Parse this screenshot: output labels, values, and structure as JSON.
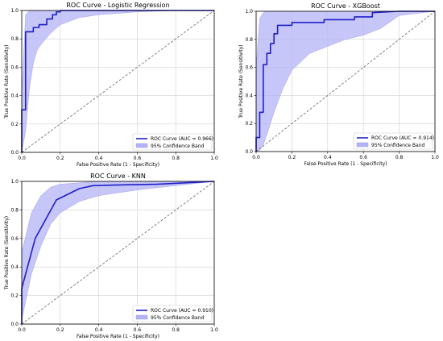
{
  "colors": {
    "roc": "#1f1fc8",
    "band": "#b3b3f5",
    "diag": "#666666",
    "grid": "#d0d0d0"
  },
  "chart_data": [
    {
      "type": "line",
      "title": "ROC Curve - Logistic Regression",
      "xlabel": "False Positive Rate (1 - Specificity)",
      "ylabel": "True Positive Rate (Sensitivity)",
      "xlim": [
        0,
        1
      ],
      "ylim": [
        0,
        1
      ],
      "xticks": [
        "0.0",
        "0.2",
        "0.4",
        "0.6",
        "0.8",
        "1.0"
      ],
      "yticks": [
        "0.0",
        "0.2",
        "0.4",
        "0.6",
        "0.8",
        "1.0"
      ],
      "grid": true,
      "legend": "bottom-right",
      "roc_label": "ROC Curve (AUC = 0.966)",
      "band_label": "95% Confidence Band",
      "roc": {
        "x": [
          0,
          0,
          0.02,
          0.02,
          0.06,
          0.06,
          0.09,
          0.09,
          0.13,
          0.13,
          0.16,
          0.16,
          0.18,
          0.18,
          0.2,
          0.2,
          0.3,
          1.0
        ],
        "y": [
          0,
          0.3,
          0.3,
          0.85,
          0.85,
          0.88,
          0.88,
          0.9,
          0.9,
          0.94,
          0.94,
          0.97,
          0.97,
          0.99,
          0.99,
          1.0,
          1.0,
          1.0
        ]
      },
      "band": {
        "x": [
          0,
          0.02,
          0.04,
          0.06,
          0.08,
          0.1,
          0.15,
          0.2,
          0.3,
          0.4,
          0.6,
          0.8,
          1.0
        ],
        "upper": [
          0.4,
          0.97,
          1,
          1,
          1,
          1,
          1,
          1,
          1,
          1,
          1,
          1,
          1
        ],
        "lower": [
          0,
          0.15,
          0.45,
          0.63,
          0.72,
          0.76,
          0.84,
          0.9,
          0.95,
          0.97,
          0.99,
          1,
          1
        ]
      }
    },
    {
      "type": "line",
      "title": "ROC Curve - XGBoost",
      "xlabel": "False Positive Rate (1 - Specificity)",
      "ylabel": "True Positive Rate (Sensitivity)",
      "xlim": [
        0,
        1
      ],
      "ylim": [
        0,
        1
      ],
      "xticks": [
        "0.0",
        "0.2",
        "0.4",
        "0.6",
        "0.8",
        "1.0"
      ],
      "yticks": [
        "0.0",
        "0.2",
        "0.4",
        "0.6",
        "0.8",
        "1.0"
      ],
      "grid": true,
      "legend": "bottom-right",
      "roc_label": "ROC Curve (AUC = 0.914)",
      "band_label": "95% Confidence Band",
      "roc": {
        "x": [
          0,
          0,
          0.02,
          0.02,
          0.04,
          0.04,
          0.06,
          0.06,
          0.08,
          0.08,
          0.1,
          0.1,
          0.12,
          0.12,
          0.2,
          0.2,
          0.38,
          0.38,
          0.55,
          0.55,
          0.65,
          0.65,
          0.8,
          1.0
        ],
        "y": [
          0,
          0.1,
          0.1,
          0.28,
          0.28,
          0.62,
          0.62,
          0.7,
          0.7,
          0.77,
          0.77,
          0.84,
          0.84,
          0.9,
          0.9,
          0.92,
          0.92,
          0.94,
          0.94,
          0.96,
          0.96,
          0.99,
          1.0,
          1.0
        ]
      },
      "band": {
        "x": [
          0,
          0.02,
          0.04,
          0.06,
          0.08,
          0.1,
          0.15,
          0.2,
          0.3,
          0.4,
          0.5,
          0.6,
          0.7,
          0.8,
          1.0
        ],
        "upper": [
          0.6,
          0.95,
          0.99,
          1,
          1,
          1,
          1,
          1,
          1,
          1,
          1,
          1,
          1,
          1,
          1
        ],
        "lower": [
          0,
          0.01,
          0.05,
          0.12,
          0.2,
          0.28,
          0.45,
          0.58,
          0.7,
          0.75,
          0.8,
          0.83,
          0.88,
          0.97,
          1.0
        ]
      }
    },
    {
      "type": "line",
      "title": "ROC Curve - KNN",
      "xlabel": "False Positive Rate (1 - Specificity)",
      "ylabel": "True Positive Rate (Sensitivity)",
      "xlim": [
        0,
        1
      ],
      "ylim": [
        0,
        1
      ],
      "xticks": [
        "0.0",
        "0.2",
        "0.4",
        "0.6",
        "0.8",
        "1.0"
      ],
      "yticks": [
        "0.0",
        "0.2",
        "0.4",
        "0.6",
        "0.8",
        "1.0"
      ],
      "grid": true,
      "legend": "bottom-right",
      "roc_label": "ROC Curve (AUC = 0.910)",
      "band_label": "95% Confidence Band",
      "roc": {
        "x": [
          0,
          0,
          0.07,
          0.18,
          0.3,
          0.37,
          0.5,
          0.7,
          1.0
        ],
        "y": [
          0,
          0.25,
          0.6,
          0.87,
          0.95,
          0.97,
          0.975,
          0.98,
          1.0
        ]
      },
      "band": {
        "x": [
          0,
          0.05,
          0.1,
          0.15,
          0.2,
          0.3,
          0.4,
          0.5,
          0.6,
          0.8,
          1.0
        ],
        "upper": [
          0.5,
          0.78,
          0.9,
          0.96,
          0.98,
          0.99,
          1,
          1,
          1,
          1,
          1
        ],
        "lower": [
          0.03,
          0.35,
          0.55,
          0.7,
          0.78,
          0.86,
          0.9,
          0.92,
          0.94,
          0.97,
          1.0
        ]
      }
    }
  ]
}
